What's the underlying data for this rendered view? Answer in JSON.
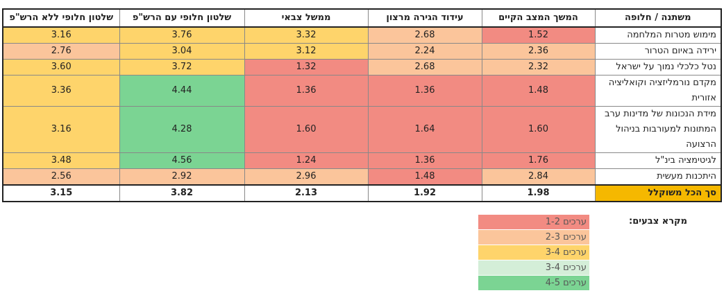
{
  "table": {
    "headers": [
      "משתנה / חלופה",
      "המשך המצב הקיים",
      "עידוד הגירה מרצון",
      "ממשל צבאי",
      "שלטון חלופי עם הרש\"פ",
      "שלטון חלופי ללא הרש\"פ"
    ],
    "rows": [
      {
        "label": "מימוש מטרות המלחמה",
        "cells": [
          {
            "v": "1.52",
            "c": "red"
          },
          {
            "v": "2.68",
            "c": "peach"
          },
          {
            "v": "3.32",
            "c": "yellow"
          },
          {
            "v": "3.76",
            "c": "yellow"
          },
          {
            "v": "3.16",
            "c": "yellow"
          }
        ]
      },
      {
        "label": "ירידה באיום הטרור",
        "cells": [
          {
            "v": "2.36",
            "c": "peach"
          },
          {
            "v": "2.24",
            "c": "peach"
          },
          {
            "v": "3.12",
            "c": "yellow"
          },
          {
            "v": "3.04",
            "c": "yellow"
          },
          {
            "v": "2.76",
            "c": "peach"
          }
        ]
      },
      {
        "label": "נטל כלכלי נמוך על ישראל",
        "cells": [
          {
            "v": "2.32",
            "c": "peach"
          },
          {
            "v": "2.68",
            "c": "peach"
          },
          {
            "v": "1.32",
            "c": "red"
          },
          {
            "v": "3.72",
            "c": "yellow"
          },
          {
            "v": "3.60",
            "c": "yellow"
          }
        ]
      },
      {
        "label": "מקדם נורמליזציה וקואליציה אזורית",
        "cells": [
          {
            "v": "1.48",
            "c": "red"
          },
          {
            "v": "1.36",
            "c": "red"
          },
          {
            "v": "1.36",
            "c": "red"
          },
          {
            "v": "4.44",
            "c": "green"
          },
          {
            "v": "3.36",
            "c": "yellow"
          }
        ]
      },
      {
        "label": "מידת הנכונות של מדינות ערב המתונות למעורבות בניהול הרצועה",
        "cells": [
          {
            "v": "1.60",
            "c": "red"
          },
          {
            "v": "1.64",
            "c": "red"
          },
          {
            "v": "1.60",
            "c": "red"
          },
          {
            "v": "4.28",
            "c": "green"
          },
          {
            "v": "3.16",
            "c": "yellow"
          }
        ]
      },
      {
        "label": "לגיטימציה בינ\"ל",
        "cells": [
          {
            "v": "1.76",
            "c": "red"
          },
          {
            "v": "1.36",
            "c": "red"
          },
          {
            "v": "1.24",
            "c": "red"
          },
          {
            "v": "4.56",
            "c": "green"
          },
          {
            "v": "3.48",
            "c": "yellow"
          }
        ]
      },
      {
        "label": "היתכנות מעשית",
        "cells": [
          {
            "v": "2.84",
            "c": "peach"
          },
          {
            "v": "1.48",
            "c": "red"
          },
          {
            "v": "2.96",
            "c": "peach"
          },
          {
            "v": "2.92",
            "c": "peach"
          },
          {
            "v": "2.56",
            "c": "peach"
          }
        ]
      }
    ],
    "total": {
      "label": "סך הכל משוקלל",
      "values": [
        "1.98",
        "1.92",
        "2.13",
        "3.82",
        "3.15"
      ]
    }
  },
  "legend": {
    "title": "מקרא צבעים:",
    "items": [
      {
        "label": "ערכים 1-2",
        "c": "red"
      },
      {
        "label": "ערכים 2-3",
        "c": "peach"
      },
      {
        "label": "ערכים 3-4",
        "c": "yellow"
      },
      {
        "label": "ערכים 3-4",
        "c": "lightgreen"
      },
      {
        "label": "ערכים 4-5",
        "c": "green"
      }
    ]
  },
  "colors": {
    "red": "#f28b82",
    "peach": "#fbc59b",
    "yellow": "#fed46b",
    "lightgreen": "#d4eed8",
    "green": "#7bd493",
    "total_label": "#f5b800"
  }
}
